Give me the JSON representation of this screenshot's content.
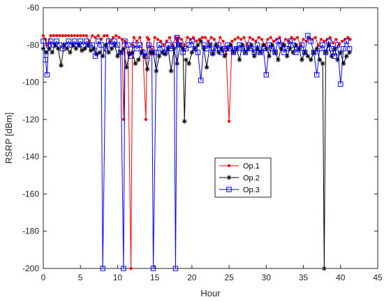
{
  "chart_data": {
    "type": "line",
    "xlabel": "Hour",
    "ylabel": "RSRP [dBm]",
    "xlim": [
      0,
      45
    ],
    "ylim": [
      -200,
      -60
    ],
    "xticks": [
      0,
      5,
      10,
      15,
      20,
      25,
      30,
      35,
      40,
      45
    ],
    "yticks": [
      -60,
      -80,
      -100,
      -120,
      -140,
      -160,
      -180,
      -200
    ],
    "xtick_labels": [
      "0",
      "5",
      "10",
      "15",
      "20",
      "25",
      "30",
      "35",
      "40",
      "45"
    ],
    "ytick_labels": [
      "-60",
      "-80",
      "-100",
      "-120",
      "-140",
      "-160",
      "-180",
      "-200"
    ],
    "grid": false,
    "legend_position": "center-right",
    "series": [
      {
        "name": "Op.1",
        "color": "#ff0000",
        "marker": "dot",
        "x": [
          0.0,
          0.3,
          0.6,
          1.0,
          1.4,
          1.8,
          2.2,
          2.6,
          3.0,
          3.4,
          3.8,
          4.2,
          4.6,
          5.0,
          5.4,
          5.8,
          6.2,
          6.6,
          7.0,
          7.4,
          7.8,
          8.2,
          8.6,
          9.0,
          9.4,
          9.8,
          10.2,
          10.6,
          10.8,
          11.0,
          11.4,
          11.8,
          12.0,
          12.2,
          12.6,
          13.0,
          13.4,
          13.8,
          14.0,
          14.2,
          14.6,
          15.0,
          15.4,
          15.8,
          16.2,
          16.6,
          17.0,
          17.4,
          17.8,
          18.0,
          18.2,
          18.6,
          19.0,
          19.4,
          19.8,
          20.2,
          20.6,
          21.0,
          21.4,
          21.8,
          22.2,
          22.6,
          23.0,
          23.4,
          23.8,
          24.2,
          24.6,
          25.0,
          25.4,
          25.8,
          26.2,
          26.6,
          27.0,
          27.4,
          27.8,
          28.2,
          28.6,
          29.0,
          29.4,
          29.8,
          30.2,
          30.6,
          31.0,
          31.4,
          31.8,
          32.2,
          32.6,
          33.0,
          33.4,
          33.8,
          34.2,
          34.6,
          35.0,
          35.4,
          35.8,
          36.2,
          36.6,
          37.0,
          37.4,
          37.8,
          38.2,
          38.6,
          39.0,
          39.4,
          39.8,
          40.2,
          40.6,
          41.0,
          41.3
        ],
        "y": [
          -75,
          -77,
          -80,
          -75,
          -75,
          -75,
          -75,
          -75,
          -75,
          -75,
          -75,
          -75,
          -75,
          -75,
          -75,
          -75,
          -78,
          -75,
          -76,
          -75,
          -77,
          -75,
          -75,
          -78,
          -76,
          -75,
          -76,
          -77,
          -120,
          -78,
          -84,
          -200,
          -80,
          -76,
          -78,
          -76,
          -83,
          -120,
          -76,
          -77,
          -85,
          -76,
          -77,
          -78,
          -80,
          -78,
          -76,
          -80,
          -76,
          -78,
          -76,
          -77,
          -80,
          -76,
          -77,
          -76,
          -78,
          -77,
          -76,
          -76,
          -78,
          -76,
          -77,
          -81,
          -76,
          -78,
          -85,
          -121,
          -78,
          -77,
          -76,
          -77,
          -76,
          -80,
          -76,
          -77,
          -78,
          -76,
          -77,
          -80,
          -77,
          -76,
          -78,
          -77,
          -76,
          -80,
          -77,
          -78,
          -76,
          -77,
          -76,
          -80,
          -77,
          -78,
          -76,
          -77,
          -76,
          -80,
          -77,
          -78,
          -77,
          -76,
          -79,
          -77,
          -80,
          -78,
          -77,
          -76,
          -77
        ],
        "x2": [],
        "y2": []
      },
      {
        "name": "Op.2",
        "color": "#000000",
        "marker": "asterisk",
        "x": [
          0.0,
          0.4,
          0.8,
          1.2,
          1.6,
          2.0,
          2.4,
          2.8,
          3.2,
          3.6,
          4.0,
          4.4,
          4.8,
          5.2,
          5.6,
          6.0,
          6.4,
          6.8,
          7.2,
          7.6,
          8.0,
          8.4,
          8.8,
          9.2,
          9.6,
          10.0,
          10.4,
          10.8,
          11.2,
          11.6,
          12.0,
          12.4,
          12.8,
          13.2,
          13.6,
          14.0,
          14.4,
          14.8,
          15.2,
          15.6,
          16.0,
          16.4,
          16.8,
          17.2,
          17.6,
          18.0,
          18.4,
          18.8,
          19.0,
          19.2,
          19.6,
          20.0,
          20.4,
          20.8,
          21.2,
          21.6,
          22.0,
          22.4,
          22.8,
          23.2,
          23.6,
          24.0,
          24.4,
          24.8,
          25.2,
          25.6,
          26.0,
          26.4,
          26.8,
          27.2,
          27.6,
          28.0,
          28.4,
          28.8,
          29.2,
          29.6,
          30.0,
          30.4,
          30.8,
          31.2,
          31.6,
          32.0,
          32.4,
          32.8,
          33.2,
          33.6,
          34.0,
          34.4,
          34.8,
          35.2,
          35.6,
          36.0,
          36.4,
          36.8,
          37.2,
          37.6,
          37.8,
          38.0,
          38.4,
          38.8,
          39.2,
          39.6,
          40.0,
          40.4,
          40.8,
          41.2
        ],
        "y": [
          -82,
          -84,
          -82,
          -84,
          -80,
          -82,
          -91,
          -80,
          -82,
          -84,
          -80,
          -82,
          -80,
          -83,
          -82,
          -80,
          -83,
          -82,
          -85,
          -84,
          -86,
          -80,
          -84,
          -82,
          -80,
          -86,
          -84,
          -82,
          -92,
          -85,
          -84,
          -90,
          -88,
          -84,
          -86,
          -93,
          -84,
          -84,
          -94,
          -86,
          -84,
          -85,
          -82,
          -94,
          -82,
          -90,
          -80,
          -82,
          -121,
          -88,
          -90,
          -84,
          -82,
          -80,
          -78,
          -82,
          -92,
          -80,
          -85,
          -80,
          -84,
          -82,
          -86,
          -82,
          -80,
          -84,
          -82,
          -88,
          -80,
          -84,
          -82,
          -80,
          -86,
          -82,
          -84,
          -80,
          -82,
          -86,
          -80,
          -84,
          -88,
          -82,
          -80,
          -86,
          -82,
          -84,
          -80,
          -82,
          -88,
          -84,
          -86,
          -88,
          -84,
          -82,
          -88,
          -90,
          -200,
          -84,
          -80,
          -86,
          -82,
          -88,
          -84,
          -90,
          -86,
          -84
        ],
        "x2": [],
        "y2": []
      },
      {
        "name": "Op.3",
        "color": "#0000ff",
        "marker": "square",
        "x": [
          0.0,
          0.3,
          0.5,
          0.7,
          1.0,
          1.4,
          1.8,
          2.2,
          2.6,
          3.0,
          3.4,
          3.8,
          4.2,
          4.6,
          5.0,
          5.4,
          5.8,
          6.2,
          6.6,
          7.0,
          7.4,
          7.8,
          8.0,
          8.4,
          8.8,
          9.2,
          9.6,
          10.0,
          10.4,
          10.8,
          11.0,
          11.4,
          11.8,
          12.2,
          12.6,
          13.0,
          13.4,
          13.8,
          14.2,
          14.6,
          14.8,
          15.2,
          15.6,
          16.0,
          16.4,
          16.8,
          17.2,
          17.6,
          17.8,
          18.0,
          18.4,
          18.8,
          19.2,
          19.6,
          20.0,
          20.4,
          20.8,
          21.2,
          21.6,
          22.0,
          22.4,
          22.8,
          23.2,
          23.6,
          24.0,
          24.4,
          24.8,
          25.2,
          25.6,
          26.0,
          26.4,
          26.8,
          27.2,
          27.6,
          28.0,
          28.4,
          28.8,
          29.2,
          29.6,
          30.0,
          30.4,
          30.8,
          31.2,
          31.6,
          32.0,
          32.4,
          32.8,
          33.2,
          33.6,
          34.0,
          34.4,
          34.8,
          35.2,
          35.6,
          36.0,
          36.4,
          36.8,
          37.2,
          37.6,
          38.0,
          38.4,
          38.8,
          39.2,
          39.6,
          40.0,
          40.4,
          40.8,
          41.2
        ],
        "y": [
          -78,
          -88,
          -96,
          -80,
          -78,
          -80,
          -78,
          -80,
          -82,
          -80,
          -78,
          -80,
          -78,
          -80,
          -78,
          -80,
          -78,
          -80,
          -80,
          -86,
          -78,
          -80,
          -200,
          -82,
          -78,
          -80,
          -78,
          -80,
          -84,
          -200,
          -78,
          -80,
          -86,
          -80,
          -82,
          -80,
          -84,
          -86,
          -80,
          -82,
          -200,
          -84,
          -80,
          -82,
          -84,
          -80,
          -82,
          -80,
          -200,
          -76,
          -80,
          -84,
          -82,
          -80,
          -78,
          -82,
          -84,
          -99,
          -80,
          -82,
          -80,
          -84,
          -82,
          -80,
          -84,
          -82,
          -80,
          -82,
          -84,
          -82,
          -80,
          -82,
          -84,
          -80,
          -82,
          -84,
          -80,
          -84,
          -82,
          -96,
          -80,
          -82,
          -84,
          -78,
          -80,
          -84,
          -82,
          -78,
          -80,
          -84,
          -82,
          -80,
          -84,
          -75,
          -78,
          -84,
          -96,
          -82,
          -80,
          -84,
          -78,
          -82,
          -86,
          -80,
          -101,
          -82,
          -78,
          -82
        ],
        "x2": [],
        "y2": []
      }
    ]
  }
}
